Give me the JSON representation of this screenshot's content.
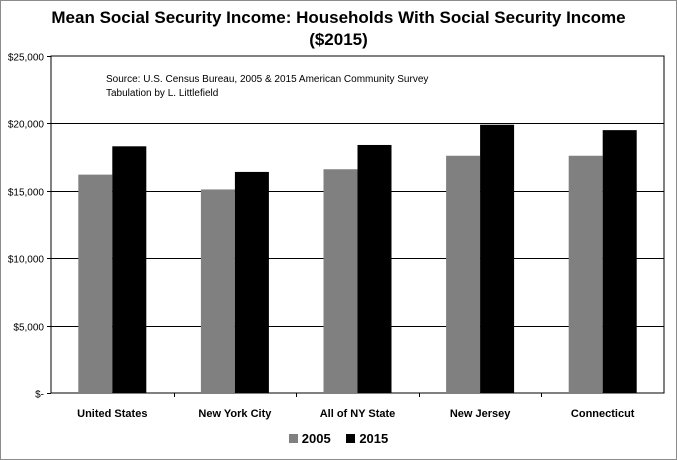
{
  "chart_data": {
    "type": "bar",
    "title": "Mean Social Security Income:  Households With Social Security Income",
    "subtitle": "($2015)",
    "annotation": [
      "Source:  U.S. Census Bureau, 2005 & 2015 American Community Survey",
      "Tabulation by L. Littlefield"
    ],
    "categories": [
      "United States",
      "New York City",
      "All of NY State",
      "New Jersey",
      "Connecticut"
    ],
    "series": [
      {
        "name": "2005",
        "color": "#808080",
        "values": [
          16200,
          15100,
          16600,
          17600,
          17600
        ]
      },
      {
        "name": "2015",
        "color": "#000000",
        "values": [
          18300,
          16400,
          18400,
          19900,
          19500
        ]
      }
    ],
    "ylim": [
      0,
      25000
    ],
    "yticks": [
      0,
      5000,
      10000,
      15000,
      20000,
      25000
    ],
    "ytick_labels": [
      "$-",
      "$5,000",
      "$10,000",
      "$15,000",
      "$20,000",
      "$25,000"
    ],
    "grid": true,
    "legend_position": "bottom"
  }
}
